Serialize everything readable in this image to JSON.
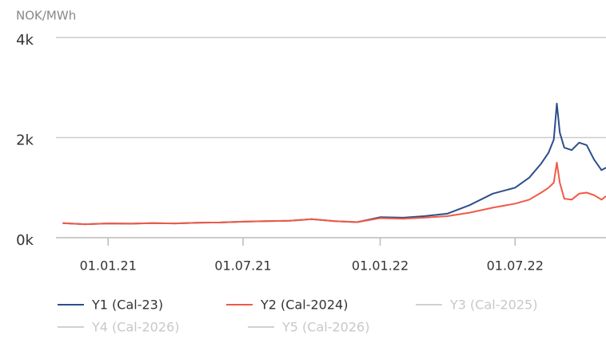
{
  "chart_data": {
    "type": "line",
    "y_label": "NOK/MWh",
    "x": [
      "2020-11-01",
      "2020-12-01",
      "2021-01-01",
      "2021-02-01",
      "2021-03-01",
      "2021-04-01",
      "2021-05-01",
      "2021-06-01",
      "2021-07-01",
      "2021-08-01",
      "2021-09-01",
      "2021-10-01",
      "2021-11-01",
      "2021-12-01",
      "2022-01-01",
      "2022-02-01",
      "2022-03-01",
      "2022-04-01",
      "2022-05-01",
      "2022-06-01",
      "2022-07-01",
      "2022-07-20",
      "2022-08-05",
      "2022-08-15",
      "2022-08-22",
      "2022-08-26",
      "2022-08-30",
      "2022-09-05",
      "2022-09-15",
      "2022-09-25",
      "2022-10-05",
      "2022-10-15",
      "2022-10-25",
      "2022-10-31"
    ],
    "series": [
      {
        "name": "Y1 (Cal-23)",
        "color": "#2b4f8a",
        "values": [
          290,
          270,
          285,
          280,
          290,
          285,
          300,
          305,
          320,
          330,
          340,
          370,
          330,
          310,
          410,
          400,
          430,
          480,
          650,
          880,
          1000,
          1200,
          1480,
          1700,
          1960,
          2680,
          2100,
          1800,
          1750,
          1900,
          1850,
          1560,
          1350,
          1400
        ]
      },
      {
        "name": "Y2 (Cal-2024)",
        "color": "#f05a46",
        "values": [
          290,
          270,
          285,
          280,
          290,
          285,
          300,
          305,
          320,
          330,
          340,
          370,
          330,
          310,
          390,
          380,
          400,
          430,
          500,
          600,
          680,
          760,
          900,
          1000,
          1100,
          1500,
          1100,
          780,
          760,
          880,
          900,
          850,
          760,
          830
        ]
      }
    ],
    "inactive_series": [
      {
        "name": "Y3 (Cal-2025)",
        "color": "#d0d0d0"
      },
      {
        "name": "Y4 (Cal-2026)",
        "color": "#d0d0d0"
      },
      {
        "name": "Y5 (Cal-2026)",
        "color": "#d0d0d0"
      }
    ],
    "xlim": [
      "2020-10-23",
      "2022-10-31"
    ],
    "xticks": [
      {
        "value": "2021-01-01",
        "label": "01.01.21"
      },
      {
        "value": "2021-07-01",
        "label": "01.07.21"
      },
      {
        "value": "2022-01-01",
        "label": "01.01.22"
      },
      {
        "value": "2022-07-01",
        "label": "01.07.22"
      }
    ],
    "ylim": [
      0,
      4000
    ],
    "yticks": [
      {
        "value": 0,
        "label": "0k"
      },
      {
        "value": 2000,
        "label": "2k"
      },
      {
        "value": 4000,
        "label": "4k"
      }
    ],
    "grid": true
  }
}
